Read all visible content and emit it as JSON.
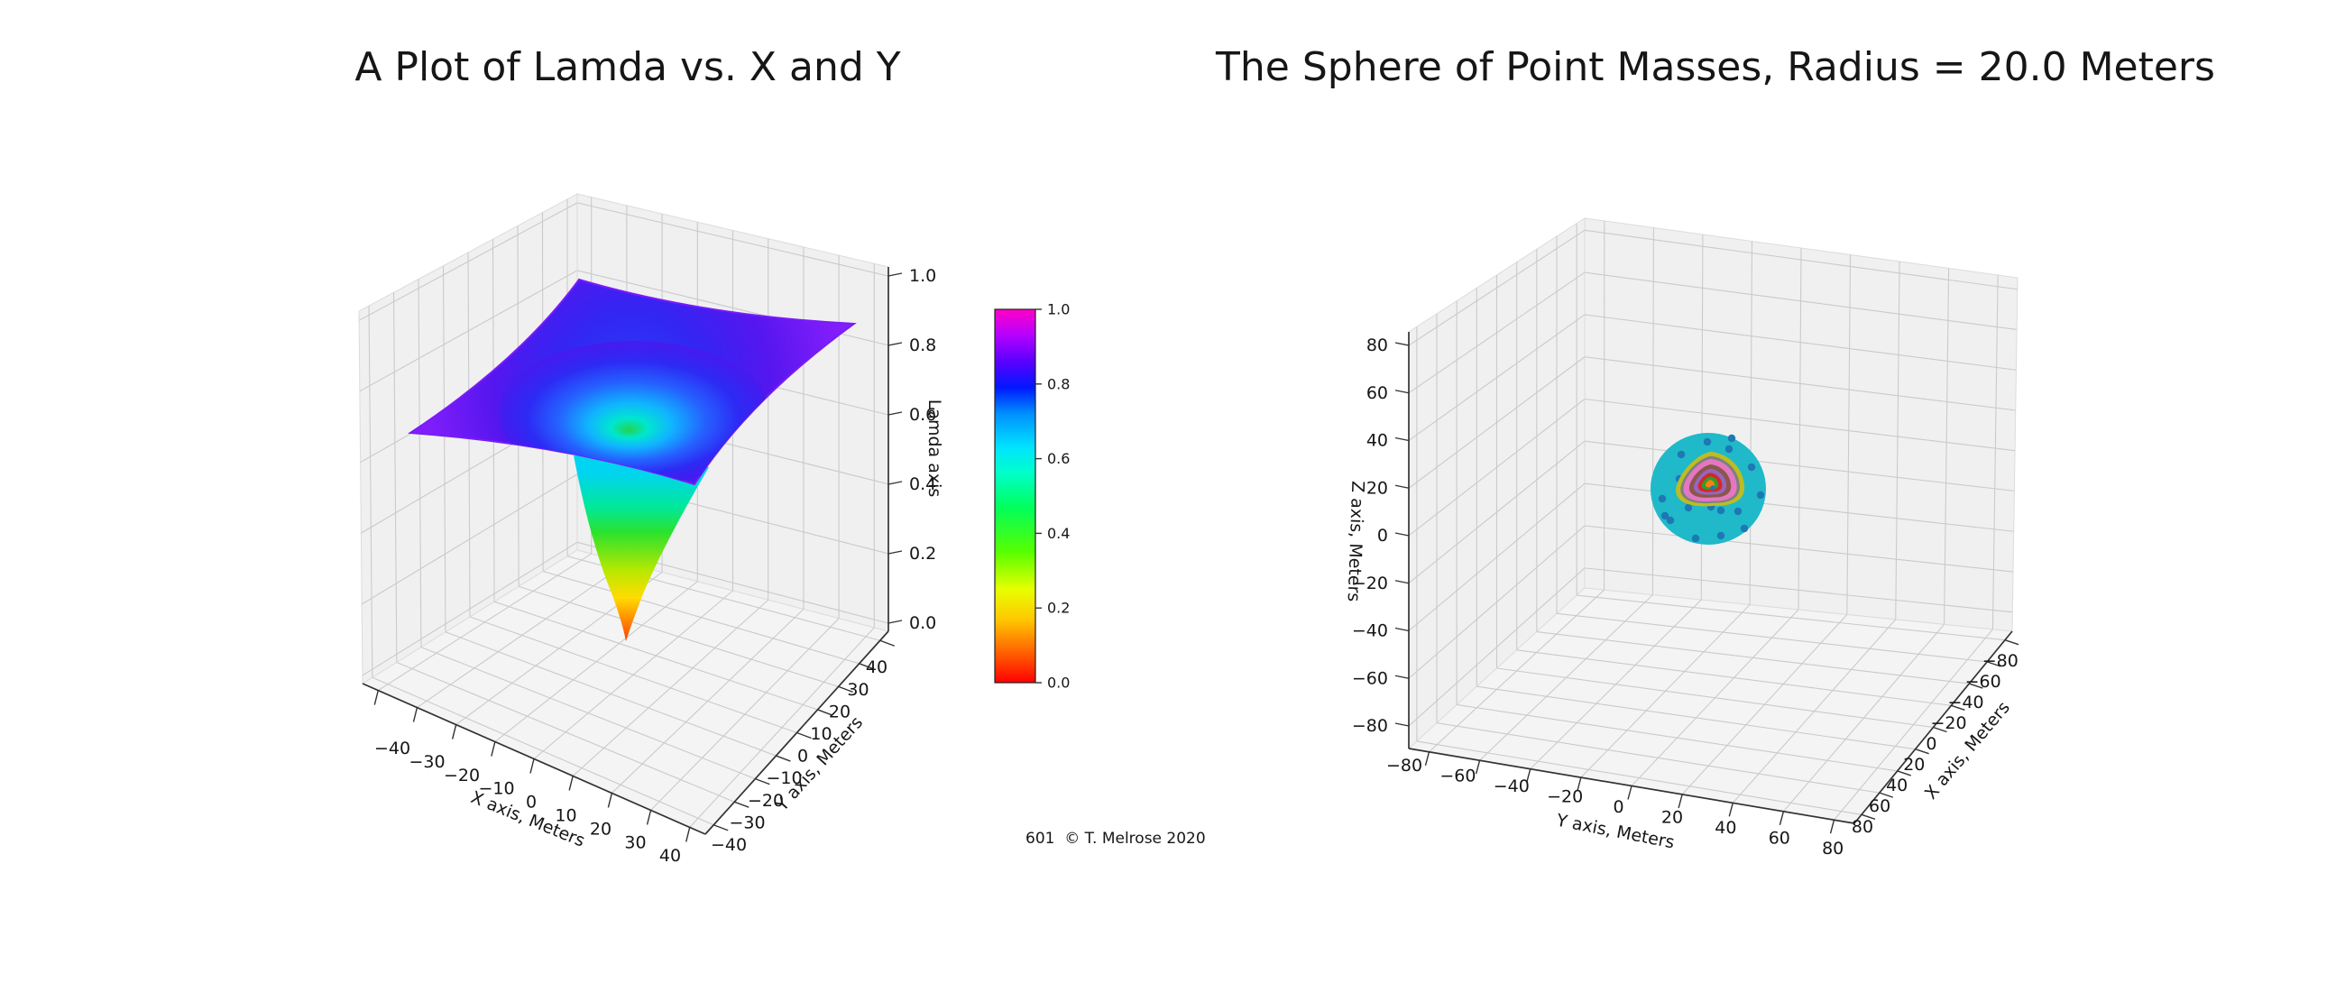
{
  "figure": {
    "background": "#ffffff"
  },
  "left_plot": {
    "title": "A Plot of Lamda vs. X and Y",
    "xlabel": "X axis, Meters",
    "ylabel": "Y axis, Meters",
    "zlabel": "Lamda axis",
    "x_ticks": [
      "−40",
      "−30",
      "−20",
      "−10",
      "0",
      "10",
      "20",
      "30",
      "40"
    ],
    "y_ticks": [
      "−40",
      "−30",
      "−20",
      "−10",
      "0",
      "10",
      "20",
      "30",
      "40"
    ],
    "z_ticks": [
      "0.0",
      "0.2",
      "0.4",
      "0.6",
      "0.8",
      "1.0"
    ],
    "surface_colors": {
      "sheet_radial": [
        [
          0,
          "#2740f6"
        ],
        [
          0.3,
          "#3326f3"
        ],
        [
          0.55,
          "#5516ef"
        ],
        [
          0.8,
          "#7d1dfa"
        ],
        [
          1,
          "#8a25ff"
        ]
      ],
      "bowl_radial": [
        [
          0,
          "#22d44d"
        ],
        [
          0.13,
          "#00e6cf"
        ],
        [
          0.3,
          "#10b4ff"
        ],
        [
          0.52,
          "#2562ff"
        ],
        [
          0.75,
          "#2d2af4"
        ],
        [
          1,
          "#4a18ef"
        ]
      ],
      "funnel_vertical": [
        [
          0,
          "#00d4f0"
        ],
        [
          0.2,
          "#00e89a"
        ],
        [
          0.35,
          "#2ae22e"
        ],
        [
          0.58,
          "#b8e800"
        ],
        [
          0.74,
          "#ffdc00"
        ],
        [
          0.87,
          "#ff8c00"
        ],
        [
          1,
          "#ff3c00"
        ]
      ],
      "edge_flash": "#7a1bf9"
    }
  },
  "colorbar": {
    "tick_labels": [
      "1.0",
      "0.8",
      "0.6",
      "0.4",
      "0.2",
      "0.0"
    ],
    "gradient_bottom_to_top": [
      [
        0,
        "#ff0000"
      ],
      [
        0.08,
        "#ff6000"
      ],
      [
        0.17,
        "#ffc800"
      ],
      [
        0.25,
        "#e8ff00"
      ],
      [
        0.35,
        "#58ff00"
      ],
      [
        0.47,
        "#00ff5c"
      ],
      [
        0.56,
        "#00ffc8"
      ],
      [
        0.63,
        "#00e4ff"
      ],
      [
        0.72,
        "#0090ff"
      ],
      [
        0.79,
        "#0018ff"
      ],
      [
        0.86,
        "#5a00ff"
      ],
      [
        0.93,
        "#b400ff"
      ],
      [
        1,
        "#ff00c8"
      ]
    ]
  },
  "caption": "601  © T. Melrose 2020",
  "right_plot": {
    "title": "The Sphere of Point Masses, Radius = 20.0 Meters",
    "xlabel": "X axis, Meters",
    "ylabel": "Y axis, Meters",
    "zlabel": "Z axis, Meters",
    "x_ticks": [
      "80",
      "60",
      "40",
      "20",
      "0",
      "−20",
      "−40",
      "−60",
      "−80"
    ],
    "y_ticks": [
      "−80",
      "−60",
      "−40",
      "−20",
      "0",
      "20",
      "40",
      "60",
      "80"
    ],
    "z_ticks": [
      "80",
      "60",
      "40",
      "20",
      "0",
      "−20",
      "−40",
      "−60",
      "−80"
    ],
    "sphere": {
      "fill": "#1fb9c9",
      "dot_color": "#1f77b4",
      "dots": [
        [
          -1,
          -52
        ],
        [
          23,
          -44
        ],
        [
          48,
          -24
        ],
        [
          58,
          7
        ],
        [
          33,
          25
        ],
        [
          14,
          24
        ],
        [
          -22,
          21
        ],
        [
          -51,
          11
        ],
        [
          -32,
          -11
        ],
        [
          -18,
          -15
        ],
        [
          3,
          20
        ],
        [
          -14,
          55
        ],
        [
          14,
          52
        ],
        [
          -30,
          -38
        ],
        [
          40,
          44
        ],
        [
          -42,
          35
        ],
        [
          26,
          -56
        ],
        [
          -48,
          30
        ]
      ],
      "rings_outer_to_inner": [
        {
          "color": "#bcbd22",
          "scale": 41
        },
        {
          "color": "#7f7f7f",
          "scale": 35.5
        },
        {
          "color": "#e377c2",
          "scale": 32
        },
        {
          "color": "#8c564b",
          "scale": 25
        },
        {
          "color": "#9467bd",
          "scale": 19.5
        },
        {
          "color": "#d62728",
          "scale": 14.5
        },
        {
          "color": "#2ca02c",
          "scale": 10
        },
        {
          "color": "#ff7f0e",
          "scale": 5.5
        }
      ],
      "center_dot_color": "#1f77b4"
    }
  },
  "chart_data": [
    {
      "type": "surface",
      "title": "A Plot of Lamda vs. X and Y",
      "xlabel": "X axis, Meters",
      "ylabel": "Y axis, Meters",
      "zlabel": "Lamda axis",
      "x_ticks": [
        -40,
        -30,
        -20,
        -10,
        0,
        10,
        20,
        30,
        40
      ],
      "y_ticks": [
        -40,
        -30,
        -20,
        -10,
        0,
        10,
        20,
        30,
        40
      ],
      "z_ticks": [
        0.0,
        0.2,
        0.4,
        0.6,
        0.8,
        1.0
      ],
      "xlim": [
        -44,
        44
      ],
      "ylim": [
        -44,
        44
      ],
      "zlim": [
        0.0,
        1.0
      ],
      "colormap": "gist_rainbow (0=red, 0.2=yellow, 0.4=green, 0.6=cyan, 0.8=blue, 1=magenta)",
      "shape": "radially symmetric potential well: lamda plateau ~0.85-0.95 at outer edges, curving down through a bowl and a narrow funnel to lamda ~0.05 at (x,y)=(0,0)",
      "radial_profile_r_vs_lamda": [
        [
          0,
          0.05
        ],
        [
          2,
          0.15
        ],
        [
          5,
          0.3
        ],
        [
          10,
          0.48
        ],
        [
          15,
          0.58
        ],
        [
          20,
          0.66
        ],
        [
          30,
          0.77
        ],
        [
          40,
          0.84
        ],
        [
          56,
          0.93
        ]
      ],
      "colorbar": {
        "ticks": [
          0.0,
          0.2,
          0.4,
          0.6,
          0.8,
          1.0
        ],
        "range": [
          0,
          1
        ]
      },
      "grid": true,
      "watermark": "601  © T. Melrose 2020",
      "legend_position": "none"
    },
    {
      "type": "scatter",
      "title": "The Sphere of Point Masses, Radius = 20.0 Meters",
      "xlabel": "X axis, Meters",
      "ylabel": "Y axis, Meters",
      "zlabel": "Z axis, Meters",
      "x_ticks": [
        -80,
        -60,
        -40,
        -20,
        0,
        20,
        40,
        60,
        80
      ],
      "y_ticks": [
        -80,
        -60,
        -40,
        -20,
        0,
        20,
        40,
        60,
        80
      ],
      "z_ticks": [
        -80,
        -60,
        -40,
        -20,
        0,
        20,
        40,
        60,
        80
      ],
      "sphere_radius_m": 20.0,
      "description": "solid sphere of point masses near the middle of the box; concentric shells visible from outside in as cyan, olive, gray, pink, brown, purple, red, green, orange with a blue point at the very center (matplotlib tab10 cycle), plus scattered blue points on the cyan surface",
      "shell_colors_outer_to_inner": [
        "#17becf",
        "#bcbd22",
        "#7f7f7f",
        "#e377c2",
        "#8c564b",
        "#9467bd",
        "#d62728",
        "#2ca02c",
        "#ff7f0e",
        "#1f77b4"
      ],
      "grid": true,
      "legend_position": "none"
    }
  ]
}
